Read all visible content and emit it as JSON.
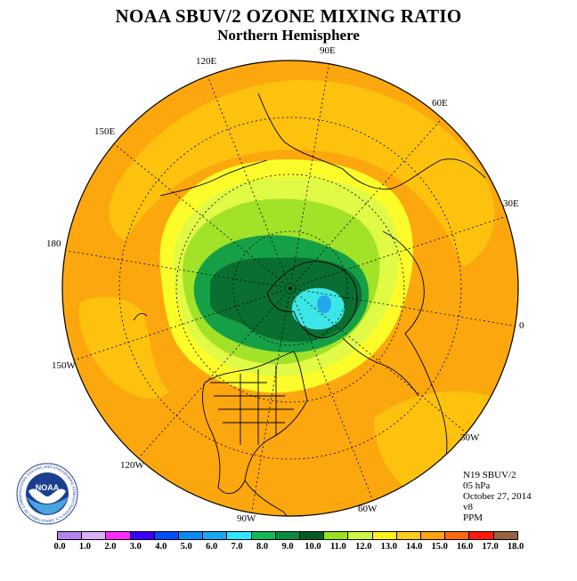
{
  "title": "NOAA SBUV/2 OZONE MIXING RATIO",
  "subtitle": "Northern Hemisphere",
  "longitude_labels": {
    "lon_90e": "90E",
    "lon_60e": "60E",
    "lon_30e": "30E",
    "lon_0": "0",
    "lon_30w": "30W",
    "lon_60w": "60W",
    "lon_90w": "90W",
    "lon_120w": "120W",
    "lon_150w": "150W",
    "lon_180": "180",
    "lon_150e": "150E",
    "lon_120e": "120E"
  },
  "info": {
    "instrument": "N19 SBUV/2",
    "pressure": "05 hPa",
    "date": "October 27, 2014",
    "version": "v8",
    "units": "PPM"
  },
  "logo": {
    "text": "NOAA",
    "ring_text": "NATIONAL OCEANIC AND ATMOSPHERIC ADMINISTRATION U.S. DEPARTMENT OF COMMERCE"
  },
  "colorbar": {
    "ticks": [
      "0.0",
      "1.0",
      "2.0",
      "3.0",
      "4.0",
      "5.0",
      "6.0",
      "7.0",
      "8.0",
      "9.0",
      "10.0",
      "11.0",
      "12.0",
      "13.0",
      "14.0",
      "15.0",
      "16.0",
      "17.0",
      "18.0"
    ],
    "colors": [
      "#b383f0",
      "#dcb0f5",
      "#ff2bff",
      "#3c00ff",
      "#0050ff",
      "#0a8cf5",
      "#1aa9f0",
      "#2ee8ff",
      "#18b85a",
      "#0a8a3d",
      "#035c25",
      "#99e020",
      "#ccf545",
      "#fff21a",
      "#ffcc1a",
      "#ffa312",
      "#ff6a0d",
      "#ff1a0d",
      "#946344"
    ]
  },
  "map_colors": {
    "background": "#fda70e",
    "band": "#fdc20e",
    "yellow": "#fcfc2a",
    "lightyellow": "#e0fa45",
    "lime": "#a2e229",
    "green": "#16a046",
    "darkgreen": "#0a6e32",
    "cyan": "#3de6e6",
    "blue": "#22a6ee"
  }
}
